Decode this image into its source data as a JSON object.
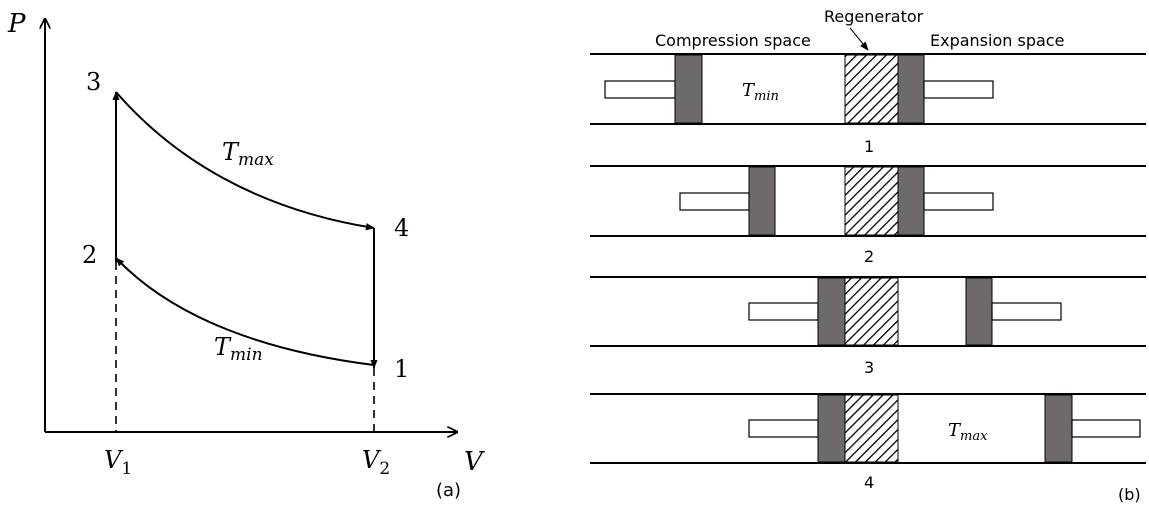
{
  "panel_a": {
    "axis_y_label": "P",
    "axis_x_label": "V",
    "v1_label": "V",
    "v1_sub": "1",
    "v2_label": "V",
    "v2_sub": "2",
    "state_labels": [
      "1",
      "2",
      "3",
      "4"
    ],
    "tmax_main": "T",
    "tmax_sub": "max",
    "tmin_main": "T",
    "tmin_sub": "min",
    "caption": "(a)"
  },
  "panel_b": {
    "regenerator_label": "Regenerator",
    "compression_label": "Compression space",
    "expansion_label": "Expansion space",
    "stage_labels": [
      "1",
      "2",
      "3",
      "4"
    ],
    "tmin_main": "T",
    "tmin_sub": "min",
    "tmax_main": "T",
    "tmax_sub": "max",
    "caption": "(b)"
  },
  "colors": {
    "stroke": "#000000",
    "piston": "#6e6a6a",
    "background": "#ffffff"
  }
}
